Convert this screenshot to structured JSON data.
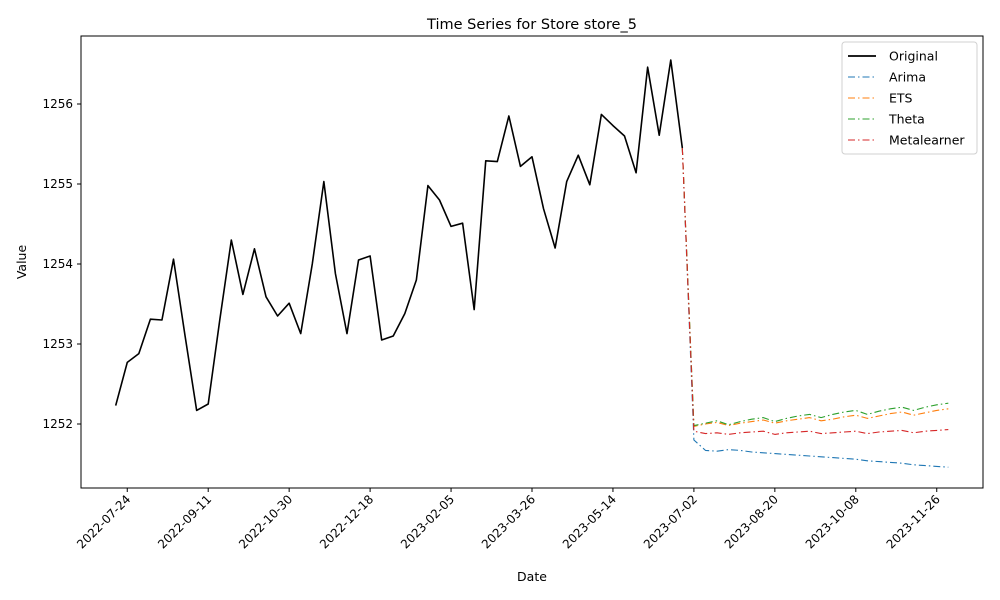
{
  "chart_data": {
    "type": "line",
    "title": "Time Series for Store store_5",
    "xlabel": "Date",
    "ylabel": "Value",
    "x_range": [
      "2022-06-26",
      "2023-12-24"
    ],
    "ylim": [
      1251.2,
      1256.85
    ],
    "y_ticks": [
      1252,
      1253,
      1254,
      1255,
      1256
    ],
    "x_ticks": [
      "2022-07-24",
      "2022-09-11",
      "2022-10-30",
      "2022-12-18",
      "2023-02-05",
      "2023-03-26",
      "2023-05-14",
      "2023-07-02",
      "2023-08-20",
      "2023-10-08",
      "2023-11-26"
    ],
    "legend_position": "upper right",
    "grid": false,
    "series": [
      {
        "name": "Original",
        "color": "#000000",
        "style": "solid",
        "x": [
          "2022-07-17",
          "2022-07-24",
          "2022-07-31",
          "2022-08-07",
          "2022-08-14",
          "2022-08-21",
          "2022-08-28",
          "2022-09-04",
          "2022-09-11",
          "2022-09-18",
          "2022-09-25",
          "2022-10-02",
          "2022-10-09",
          "2022-10-16",
          "2022-10-23",
          "2022-10-30",
          "2022-11-06",
          "2022-11-13",
          "2022-11-20",
          "2022-11-27",
          "2022-12-04",
          "2022-12-11",
          "2022-12-18",
          "2022-12-25",
          "2023-01-01",
          "2023-01-08",
          "2023-01-15",
          "2023-01-22",
          "2023-01-29",
          "2023-02-05",
          "2023-02-12",
          "2023-02-19",
          "2023-02-26",
          "2023-03-05",
          "2023-03-12",
          "2023-03-19",
          "2023-03-26",
          "2023-04-02",
          "2023-04-09",
          "2023-04-16",
          "2023-04-23",
          "2023-04-30",
          "2023-05-07",
          "2023-05-14",
          "2023-05-21",
          "2023-05-28",
          "2023-06-04",
          "2023-06-11",
          "2023-06-18",
          "2023-06-25"
        ],
        "y": [
          1252.23,
          1252.77,
          1252.88,
          1253.31,
          1253.3,
          1254.06,
          1253.1,
          1252.17,
          1252.25,
          1253.3,
          1254.3,
          1253.62,
          1254.19,
          1253.59,
          1253.35,
          1253.51,
          1253.13,
          1254.0,
          1255.03,
          1253.88,
          1253.13,
          1254.05,
          1254.1,
          1253.05,
          1253.1,
          1253.38,
          1253.8,
          1254.98,
          1254.8,
          1254.47,
          1254.51,
          1253.43,
          1255.29,
          1255.28,
          1255.85,
          1255.22,
          1255.34,
          1254.69,
          1254.2,
          1255.03,
          1255.36,
          1254.99,
          1255.87,
          1255.73,
          1255.6,
          1255.14,
          1256.46,
          1255.61,
          1256.55,
          1255.45
        ]
      },
      {
        "name": "Arima",
        "color": "#1f77b4",
        "style": "dashdot",
        "x": [
          "2023-06-25",
          "2023-07-02",
          "2023-07-09",
          "2023-07-16",
          "2023-07-23",
          "2023-07-30",
          "2023-08-06",
          "2023-08-13",
          "2023-08-20",
          "2023-08-27",
          "2023-09-03",
          "2023-09-10",
          "2023-09-17",
          "2023-09-24",
          "2023-10-01",
          "2023-10-08",
          "2023-10-15",
          "2023-10-22",
          "2023-10-29",
          "2023-11-05",
          "2023-11-12",
          "2023-11-19",
          "2023-11-26",
          "2023-12-03"
        ],
        "y": [
          1255.45,
          1251.8,
          1251.67,
          1251.66,
          1251.68,
          1251.67,
          1251.65,
          1251.64,
          1251.63,
          1251.62,
          1251.61,
          1251.6,
          1251.59,
          1251.58,
          1251.57,
          1251.56,
          1251.54,
          1251.53,
          1251.52,
          1251.51,
          1251.49,
          1251.48,
          1251.47,
          1251.46
        ]
      },
      {
        "name": "ETS",
        "color": "#ff7f0e",
        "style": "dashdot",
        "x": [
          "2023-06-25",
          "2023-07-02",
          "2023-07-09",
          "2023-07-16",
          "2023-07-23",
          "2023-07-30",
          "2023-08-06",
          "2023-08-13",
          "2023-08-20",
          "2023-08-27",
          "2023-09-03",
          "2023-09-10",
          "2023-09-17",
          "2023-09-24",
          "2023-10-01",
          "2023-10-08",
          "2023-10-15",
          "2023-10-22",
          "2023-10-29",
          "2023-11-05",
          "2023-11-12",
          "2023-11-19",
          "2023-11-26",
          "2023-12-03"
        ],
        "y": [
          1255.45,
          1251.97,
          1252.0,
          1252.02,
          1251.98,
          1252.01,
          1252.03,
          1252.05,
          1252.01,
          1252.04,
          1252.06,
          1252.08,
          1252.04,
          1252.06,
          1252.09,
          1252.11,
          1252.07,
          1252.1,
          1252.13,
          1252.15,
          1252.11,
          1252.14,
          1252.17,
          1252.19
        ]
      },
      {
        "name": "Theta",
        "color": "#2ca02c",
        "style": "dashdot",
        "x": [
          "2023-06-25",
          "2023-07-02",
          "2023-07-09",
          "2023-07-16",
          "2023-07-23",
          "2023-07-30",
          "2023-08-06",
          "2023-08-13",
          "2023-08-20",
          "2023-08-27",
          "2023-09-03",
          "2023-09-10",
          "2023-09-17",
          "2023-09-24",
          "2023-10-01",
          "2023-10-08",
          "2023-10-15",
          "2023-10-22",
          "2023-10-29",
          "2023-11-05",
          "2023-11-12",
          "2023-11-19",
          "2023-11-26",
          "2023-12-03"
        ],
        "y": [
          1255.45,
          1251.98,
          1252.01,
          1252.04,
          1251.99,
          1252.03,
          1252.06,
          1252.08,
          1252.03,
          1252.07,
          1252.1,
          1252.12,
          1252.08,
          1252.12,
          1252.15,
          1252.17,
          1252.12,
          1252.16,
          1252.19,
          1252.21,
          1252.17,
          1252.21,
          1252.24,
          1252.26
        ]
      },
      {
        "name": "Metalearner",
        "color": "#d62728",
        "style": "dashdot",
        "x": [
          "2023-06-25",
          "2023-07-02",
          "2023-07-09",
          "2023-07-16",
          "2023-07-23",
          "2023-07-30",
          "2023-08-06",
          "2023-08-13",
          "2023-08-20",
          "2023-08-27",
          "2023-09-03",
          "2023-09-10",
          "2023-09-17",
          "2023-09-24",
          "2023-10-01",
          "2023-10-08",
          "2023-10-15",
          "2023-10-22",
          "2023-10-29",
          "2023-11-05",
          "2023-11-12",
          "2023-11-19",
          "2023-11-26",
          "2023-12-03"
        ],
        "y": [
          1255.45,
          1251.91,
          1251.88,
          1251.89,
          1251.87,
          1251.89,
          1251.9,
          1251.91,
          1251.87,
          1251.89,
          1251.9,
          1251.91,
          1251.88,
          1251.89,
          1251.9,
          1251.91,
          1251.88,
          1251.9,
          1251.91,
          1251.92,
          1251.89,
          1251.91,
          1251.92,
          1251.93
        ]
      }
    ]
  }
}
